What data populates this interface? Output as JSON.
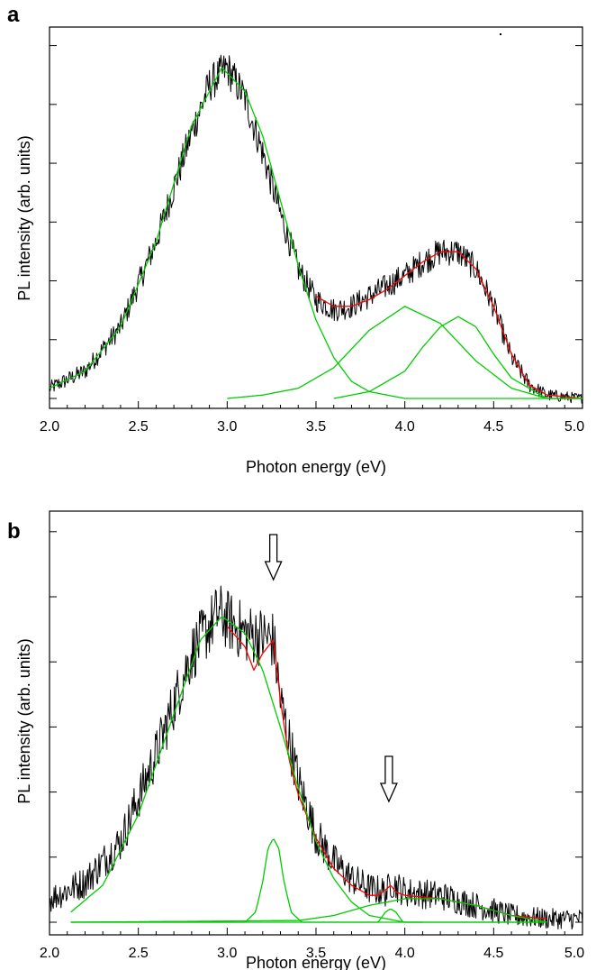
{
  "chart_data": [
    {
      "panel_label": "a",
      "type": "line",
      "xlabel": "Photon energy (eV)",
      "ylabel": "PL intensity (arb. units)",
      "xlim": [
        2.0,
        5.0
      ],
      "ylim": [
        0,
        1.1
      ],
      "x_ticks": [
        "2.0",
        "2.5",
        "3.0",
        "3.5",
        "4.0",
        "4.5",
        "5.0"
      ],
      "x_tick_values": [
        2.0,
        2.5,
        3.0,
        3.5,
        4.0,
        4.5,
        5.0
      ],
      "y_tick_labels_shown": false,
      "grid": false,
      "legend": "none",
      "series": [
        {
          "role": "experimental spectrum (noisy)",
          "color": "#000000",
          "x": [
            2.0,
            2.2,
            2.4,
            2.6,
            2.8,
            2.9,
            3.0,
            3.1,
            3.2,
            3.3,
            3.4,
            3.5,
            3.6,
            3.7,
            3.8,
            3.9,
            4.0,
            4.1,
            4.2,
            4.3,
            4.4,
            4.5,
            4.6,
            4.7,
            4.8,
            5.0
          ],
          "y": [
            0.03,
            0.08,
            0.21,
            0.46,
            0.78,
            0.92,
            0.97,
            0.88,
            0.72,
            0.54,
            0.38,
            0.29,
            0.26,
            0.27,
            0.3,
            0.33,
            0.36,
            0.4,
            0.43,
            0.43,
            0.38,
            0.27,
            0.12,
            0.04,
            0.01,
            0.0
          ],
          "noise": 0.035
        },
        {
          "role": "total fit",
          "color": "#ff0000",
          "x": [
            3.5,
            3.6,
            3.7,
            3.8,
            3.9,
            4.0,
            4.1,
            4.2,
            4.3,
            4.4,
            4.5,
            4.6,
            4.7,
            4.8,
            5.0
          ],
          "y": [
            0.3,
            0.27,
            0.27,
            0.29,
            0.32,
            0.36,
            0.4,
            0.43,
            0.43,
            0.38,
            0.27,
            0.13,
            0.04,
            0.01,
            0.0
          ]
        },
        {
          "role": "gaussian component",
          "color": "#00cc00",
          "x": [
            2.0,
            2.2,
            2.4,
            2.6,
            2.8,
            2.97,
            3.1,
            3.2,
            3.3,
            3.4,
            3.5,
            3.6,
            3.7,
            3.8,
            4.0,
            4.2,
            5.0
          ],
          "y": [
            0.03,
            0.08,
            0.21,
            0.46,
            0.8,
            0.97,
            0.9,
            0.77,
            0.58,
            0.39,
            0.23,
            0.12,
            0.05,
            0.02,
            0.0,
            0.0,
            0.0
          ]
        },
        {
          "role": "gaussian component",
          "color": "#00cc00",
          "x": [
            3.0,
            3.2,
            3.4,
            3.6,
            3.8,
            4.0,
            4.2,
            4.4,
            4.6,
            4.8,
            5.0
          ],
          "y": [
            0.0,
            0.01,
            0.03,
            0.09,
            0.2,
            0.27,
            0.22,
            0.11,
            0.03,
            0.0,
            0.0
          ]
        },
        {
          "role": "gaussian component",
          "color": "#00cc00",
          "x": [
            3.6,
            3.8,
            4.0,
            4.1,
            4.2,
            4.3,
            4.4,
            4.5,
            4.6,
            4.8,
            5.0
          ],
          "y": [
            0.0,
            0.02,
            0.08,
            0.15,
            0.21,
            0.24,
            0.21,
            0.13,
            0.06,
            0.0,
            0.0
          ]
        }
      ]
    },
    {
      "panel_label": "b",
      "type": "line",
      "xlabel": "Photon energy (eV)",
      "ylabel": "PL intensity (arb. units)",
      "xlim": [
        2.0,
        5.0
      ],
      "ylim": [
        0,
        1.15
      ],
      "x_ticks": [
        "2.0",
        "2.5",
        "3.0",
        "3.5",
        "4.0",
        "4.5",
        "5.0"
      ],
      "x_tick_values": [
        2.0,
        2.5,
        3.0,
        3.5,
        4.0,
        4.5,
        5.0
      ],
      "y_tick_labels_shown": false,
      "grid": false,
      "legend": "none",
      "arrows_at_x": [
        3.26,
        3.91
      ],
      "series": [
        {
          "role": "experimental spectrum (noisy)",
          "color": "#000000",
          "x": [
            2.0,
            2.2,
            2.4,
            2.6,
            2.8,
            2.95,
            3.1,
            3.2,
            3.26,
            3.3,
            3.4,
            3.5,
            3.6,
            3.7,
            3.8,
            3.9,
            3.92,
            4.0,
            4.2,
            4.4,
            4.6,
            4.8,
            5.0
          ],
          "y": [
            0.07,
            0.12,
            0.24,
            0.5,
            0.8,
            0.92,
            0.86,
            0.85,
            0.84,
            0.66,
            0.42,
            0.26,
            0.18,
            0.13,
            0.1,
            0.09,
            0.12,
            0.09,
            0.08,
            0.05,
            0.02,
            0.01,
            0.01
          ],
          "noise": 0.06
        },
        {
          "role": "total fit",
          "color": "#ff0000",
          "x": [
            3.0,
            3.1,
            3.15,
            3.2,
            3.26,
            3.3,
            3.35,
            3.4,
            3.5,
            3.6,
            3.7,
            3.8,
            3.85,
            3.9,
            3.92,
            3.95,
            4.0,
            4.2,
            4.4,
            4.6,
            4.8
          ],
          "y": [
            0.88,
            0.82,
            0.75,
            0.8,
            0.84,
            0.66,
            0.48,
            0.38,
            0.25,
            0.16,
            0.11,
            0.08,
            0.08,
            0.1,
            0.11,
            0.09,
            0.08,
            0.07,
            0.05,
            0.02,
            0.01
          ]
        },
        {
          "role": "gaussian component",
          "color": "#00cc00",
          "x": [
            2.12,
            2.3,
            2.5,
            2.7,
            2.85,
            2.97,
            3.1,
            3.2,
            3.3,
            3.4,
            3.5,
            3.6,
            3.7,
            3.8,
            3.9,
            4.0,
            4.1
          ],
          "y": [
            0.03,
            0.11,
            0.32,
            0.62,
            0.84,
            0.91,
            0.86,
            0.75,
            0.58,
            0.4,
            0.24,
            0.13,
            0.06,
            0.02,
            0.01,
            0.0,
            0.0
          ]
        },
        {
          "role": "gaussian component",
          "color": "#00cc00",
          "x": [
            2.12,
            3.1,
            3.16,
            3.2,
            3.23,
            3.26,
            3.29,
            3.32,
            3.36,
            3.42,
            4.8
          ],
          "y": [
            0.0,
            0.0,
            0.03,
            0.12,
            0.22,
            0.25,
            0.22,
            0.12,
            0.03,
            0.0,
            0.0
          ]
        },
        {
          "role": "gaussian component",
          "color": "#00cc00",
          "x": [
            2.12,
            3.4,
            3.6,
            3.8,
            4.0,
            4.2,
            4.4,
            4.6,
            4.8
          ],
          "y": [
            0.0,
            0.005,
            0.02,
            0.05,
            0.07,
            0.07,
            0.05,
            0.02,
            0.0
          ]
        },
        {
          "role": "gaussian component",
          "color": "#00cc00",
          "x": [
            2.12,
            3.85,
            3.89,
            3.92,
            3.95,
            3.99,
            4.8
          ],
          "y": [
            0.0,
            0.0,
            0.03,
            0.04,
            0.03,
            0.0,
            0.0
          ]
        }
      ]
    }
  ]
}
